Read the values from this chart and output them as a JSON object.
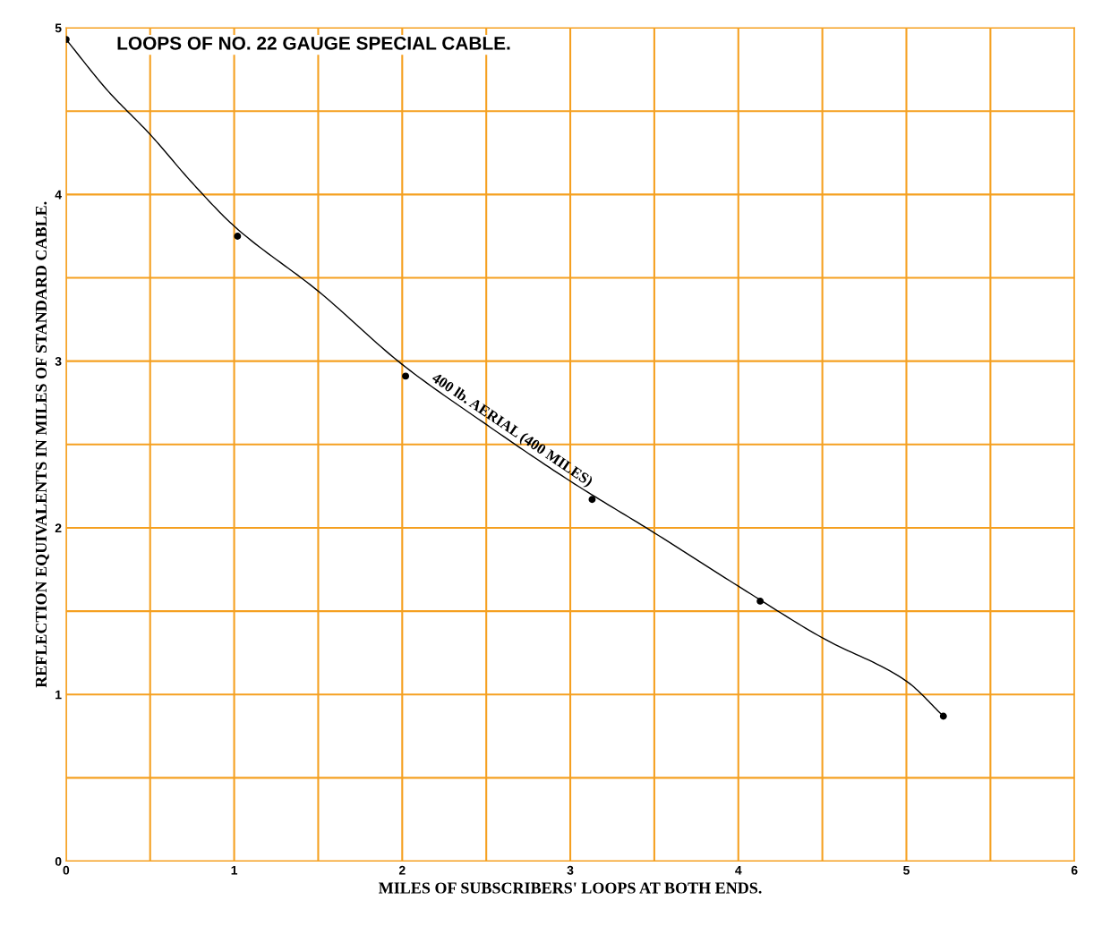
{
  "chart_data": {
    "type": "line",
    "title": "LOOPS OF NO. 22 GAUGE SPECIAL CABLE.",
    "xlabel": "MILES OF SUBSCRIBERS' LOOPS AT BOTH ENDS.",
    "ylabel": "REFLECTION EQUIVALENTS IN MILES OF STANDARD CABLE.",
    "series": [
      {
        "name": "400 lb. AERIAL (400 MILES)",
        "color": "#000000",
        "x": [
          0,
          0.25,
          0.5,
          0.75,
          1,
          1.5,
          2,
          2.5,
          3,
          3.5,
          4,
          4.5,
          5,
          5.22
        ],
        "values": [
          4.93,
          4.62,
          4.36,
          4.07,
          3.81,
          3.42,
          2.98,
          2.62,
          2.28,
          1.97,
          1.65,
          1.34,
          1.08,
          0.87
        ]
      },
      {
        "type": "scatter",
        "marker": "circle",
        "color": "#000000",
        "x": [
          0,
          1.02,
          2.02,
          3.13,
          4.13,
          5.22
        ],
        "values": [
          4.93,
          3.75,
          2.91,
          2.17,
          1.56,
          0.87
        ]
      }
    ],
    "xlim": [
      0,
      6
    ],
    "ylim": [
      0,
      5
    ],
    "xticks": [
      0,
      {
        "value": 0.5,
        "label": null
      },
      1,
      {
        "value": 1.5,
        "label": null
      },
      2,
      {
        "value": 2.5,
        "label": null
      },
      3,
      {
        "value": 3.5,
        "label": null
      },
      4,
      {
        "value": 4.5,
        "label": null
      },
      5,
      {
        "value": 5.5,
        "label": null
      },
      6
    ],
    "yticks": [
      0,
      {
        "value": 0.5,
        "label": null
      },
      1,
      {
        "value": 1.5,
        "label": null
      },
      2,
      {
        "value": 2.5,
        "label": null
      },
      3,
      {
        "value": 3.5,
        "label": null
      },
      4,
      {
        "value": 4.5,
        "label": null
      },
      5
    ],
    "grid": true
  }
}
